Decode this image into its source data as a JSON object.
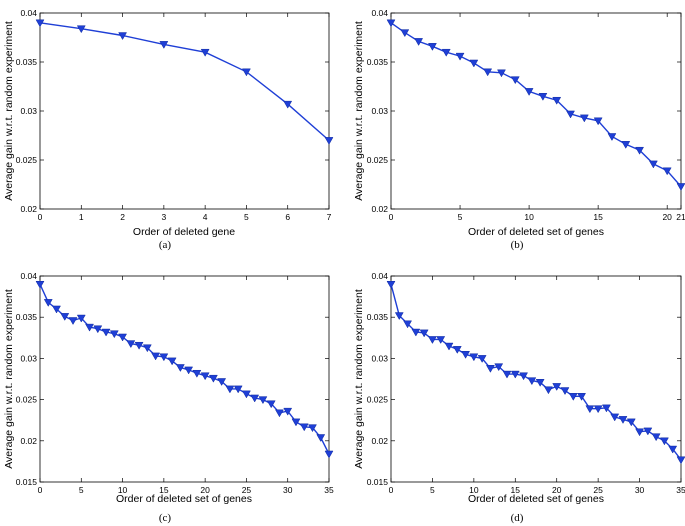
{
  "chart_data": [
    {
      "type": "line",
      "caption": "(a)",
      "xlabel": "Order of deleted gene",
      "ylabel": "Average gain w.r.t. random experiment",
      "xlim": [
        0,
        7
      ],
      "ylim": [
        0.02,
        0.04
      ],
      "xticks": [
        0,
        1,
        2,
        3,
        4,
        5,
        6,
        7
      ],
      "xtick_labels": [
        "0",
        "1",
        "2",
        "3",
        "4",
        "5",
        "6",
        "7"
      ],
      "yticks": [
        0.02,
        0.025,
        0.03,
        0.035,
        0.04
      ],
      "ytick_labels": [
        "0.02",
        "0.025",
        "0.03",
        "0.035",
        "0.04"
      ],
      "color": "#1f3fd6",
      "x": [
        0,
        1,
        2,
        3,
        4,
        5,
        6,
        7
      ],
      "y": [
        0.039,
        0.0384,
        0.0377,
        0.0368,
        0.036,
        0.034,
        0.0307,
        0.027
      ]
    },
    {
      "type": "line",
      "caption": "(b)",
      "xlabel": "Order of deleted set of genes",
      "ylabel": "Average gain w.r.t. random experiment",
      "xlim": [
        0,
        21
      ],
      "ylim": [
        0.02,
        0.04
      ],
      "xticks": [
        0,
        5,
        10,
        15,
        20,
        21
      ],
      "xtick_labels": [
        "0",
        "5",
        "10",
        "15",
        "20",
        "21"
      ],
      "yticks": [
        0.02,
        0.025,
        0.03,
        0.035,
        0.04
      ],
      "ytick_labels": [
        "0.02",
        "0.025",
        "0.03",
        "0.035",
        "0.04"
      ],
      "color": "#1f3fd6",
      "x": [
        0,
        1,
        2,
        3,
        4,
        5,
        6,
        7,
        8,
        9,
        10,
        11,
        12,
        13,
        14,
        15,
        16,
        17,
        18,
        19,
        20,
        21
      ],
      "y": [
        0.039,
        0.038,
        0.0371,
        0.0366,
        0.036,
        0.0356,
        0.0349,
        0.034,
        0.0339,
        0.0332,
        0.032,
        0.0315,
        0.0311,
        0.0297,
        0.0293,
        0.029,
        0.0274,
        0.0266,
        0.026,
        0.0246,
        0.0239,
        0.0223
      ]
    },
    {
      "type": "line",
      "caption": "(c)",
      "xlabel": "Order of deleted set of genes",
      "ylabel": "Average gain w.r.t. random experiment",
      "xlim": [
        0,
        35
      ],
      "ylim": [
        0.015,
        0.04
      ],
      "xticks": [
        0,
        5,
        10,
        15,
        20,
        25,
        30,
        35
      ],
      "xtick_labels": [
        "0",
        "5",
        "10",
        "15",
        "20",
        "25",
        "30",
        "35"
      ],
      "yticks": [
        0.015,
        0.02,
        0.025,
        0.03,
        0.035,
        0.04
      ],
      "ytick_labels": [
        "0.015",
        "0.02",
        "0.025",
        "0.03",
        "0.035",
        "0.04"
      ],
      "color": "#1f3fd6",
      "x": [
        0,
        1,
        2,
        3,
        4,
        5,
        6,
        7,
        8,
        9,
        10,
        11,
        12,
        13,
        14,
        15,
        16,
        17,
        18,
        19,
        20,
        21,
        22,
        23,
        24,
        25,
        26,
        27,
        28,
        29,
        30,
        31,
        32,
        33,
        34,
        35
      ],
      "y": [
        0.039,
        0.0368,
        0.036,
        0.0351,
        0.0346,
        0.0349,
        0.0338,
        0.0336,
        0.0332,
        0.033,
        0.0326,
        0.0318,
        0.0316,
        0.0313,
        0.0303,
        0.0302,
        0.0297,
        0.0289,
        0.0286,
        0.0282,
        0.0279,
        0.0276,
        0.0272,
        0.0263,
        0.0263,
        0.0257,
        0.0252,
        0.025,
        0.0245,
        0.0234,
        0.0236,
        0.0223,
        0.0217,
        0.0216,
        0.0204,
        0.0184
      ]
    },
    {
      "type": "line",
      "caption": "(d)",
      "xlabel": "Order of deleted set of genes",
      "ylabel": "Average gain w.r.t. random experiment",
      "xlim": [
        0,
        35
      ],
      "ylim": [
        0.015,
        0.04
      ],
      "xticks": [
        0,
        5,
        10,
        15,
        20,
        25,
        30,
        35
      ],
      "xtick_labels": [
        "0",
        "5",
        "10",
        "15",
        "20",
        "25",
        "30",
        "35"
      ],
      "yticks": [
        0.015,
        0.02,
        0.025,
        0.03,
        0.035,
        0.04
      ],
      "ytick_labels": [
        "0.015",
        "0.02",
        "0.025",
        "0.03",
        "0.035",
        "0.04"
      ],
      "color": "#1f3fd6",
      "x": [
        0,
        1,
        2,
        3,
        4,
        5,
        6,
        7,
        8,
        9,
        10,
        11,
        12,
        13,
        14,
        15,
        16,
        17,
        18,
        19,
        20,
        21,
        22,
        23,
        24,
        25,
        26,
        27,
        28,
        29,
        30,
        31,
        32,
        33,
        34,
        35
      ],
      "y": [
        0.039,
        0.0352,
        0.0342,
        0.0332,
        0.0331,
        0.0323,
        0.0323,
        0.0315,
        0.0311,
        0.0305,
        0.0302,
        0.03,
        0.0288,
        0.029,
        0.0281,
        0.0281,
        0.0279,
        0.0273,
        0.0271,
        0.0262,
        0.0266,
        0.0261,
        0.0254,
        0.0254,
        0.0239,
        0.0239,
        0.024,
        0.0229,
        0.0226,
        0.0223,
        0.0211,
        0.0212,
        0.0205,
        0.02,
        0.019,
        0.0177
      ]
    }
  ]
}
